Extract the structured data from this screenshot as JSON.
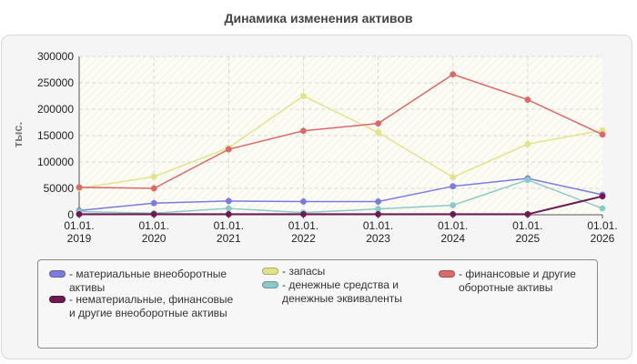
{
  "chart_data": {
    "type": "line",
    "title": "Динамика изменения активов",
    "ylabel": "тыс.",
    "xlabel": "",
    "ylim": [
      0,
      300000
    ],
    "yticks": [
      0,
      50000,
      100000,
      150000,
      200000,
      250000,
      300000
    ],
    "categories": [
      "01.01.\n2019",
      "01.01.\n2020",
      "01.01.\n2021",
      "01.01.\n2022",
      "01.01.\n2023",
      "01.01.\n2024",
      "01.01.\n2025",
      "01.01.\n2026"
    ],
    "grid": true,
    "legend_position": "bottom",
    "series": [
      {
        "name": "материальные внеоборотные активы",
        "color": "#7b7be0",
        "values": [
          8000,
          22000,
          26000,
          25000,
          25000,
          54000,
          69000,
          38000
        ]
      },
      {
        "name": "запасы",
        "color": "#e3e38c",
        "values": [
          50000,
          72000,
          127000,
          225000,
          156000,
          71000,
          134000,
          160000
        ]
      },
      {
        "name": "финансовые и другие оборотные активы",
        "color": "#d86a6a",
        "values": [
          52000,
          50000,
          124000,
          159000,
          173000,
          266000,
          218000,
          152000
        ]
      },
      {
        "name": "нематериальные, финансовые и другие внеоборотные активы",
        "color": "#6e1a52",
        "values": [
          1000,
          1000,
          1000,
          1000,
          1000,
          1000,
          1000,
          35000
        ]
      },
      {
        "name": "денежные средства и денежные эквиваленты",
        "color": "#8cc9c9",
        "values": [
          6000,
          3000,
          12000,
          4000,
          11000,
          18000,
          66000,
          12000
        ]
      }
    ]
  }
}
